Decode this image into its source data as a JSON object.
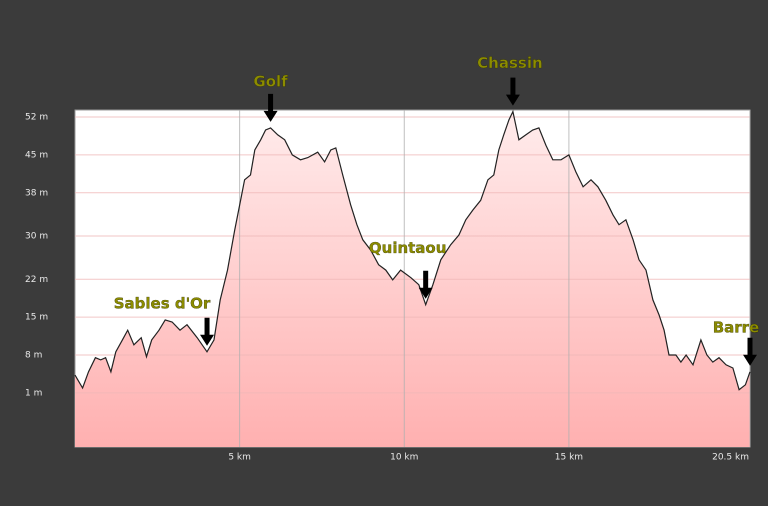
{
  "chart_data": {
    "type": "area",
    "x": [
      0,
      0.23,
      0.41,
      0.62,
      0.78,
      0.93,
      1.09,
      1.24,
      1.44,
      1.6,
      1.79,
      2.01,
      2.17,
      2.33,
      2.55,
      2.74,
      2.95,
      3.19,
      3.4,
      3.71,
      4.01,
      4.22,
      4.41,
      4.63,
      4.85,
      5.03,
      5.15,
      5.33,
      5.46,
      5.64,
      5.79,
      5.94,
      6.16,
      6.37,
      6.6,
      6.85,
      7.07,
      7.37,
      7.58,
      7.77,
      7.92,
      8.13,
      8.37,
      8.56,
      8.74,
      8.98,
      9.22,
      9.44,
      9.65,
      9.89,
      10.2,
      10.44,
      10.65,
      10.87,
      11.11,
      11.41,
      11.66,
      11.87,
      12.08,
      12.32,
      12.54,
      12.72,
      12.87,
      13.02,
      13.18,
      13.3,
      13.48,
      13.69,
      13.9,
      14.09,
      14.3,
      14.51,
      14.76,
      15.0,
      15.21,
      15.43,
      15.67,
      15.88,
      16.12,
      16.34,
      16.52,
      16.73,
      16.95,
      17.13,
      17.34,
      17.55,
      17.74,
      17.89,
      18.04,
      18.25,
      18.4,
      18.56,
      18.77,
      19.01,
      19.19,
      19.37,
      19.56,
      19.77,
      19.98,
      20.17,
      20.36,
      20.5
    ],
    "values": [
      4.3,
      1.9,
      4.9,
      7.5,
      7.1,
      7.5,
      4.9,
      8.6,
      10.8,
      12.6,
      9.9,
      11.2,
      7.7,
      10.8,
      12.6,
      14.5,
      14.1,
      12.6,
      13.6,
      11.2,
      8.6,
      10.8,
      18.2,
      23.7,
      31.1,
      36.6,
      40.4,
      41.3,
      45.9,
      47.8,
      49.6,
      50.0,
      48.7,
      47.8,
      45.0,
      44.1,
      44.5,
      45.5,
      43.7,
      45.9,
      46.3,
      41.3,
      35.8,
      32.1,
      29.3,
      27.4,
      24.7,
      23.7,
      21.9,
      23.7,
      22.3,
      21.0,
      17.3,
      21.0,
      25.6,
      28.4,
      30.2,
      33.0,
      34.8,
      36.6,
      40.4,
      41.3,
      45.9,
      48.7,
      51.5,
      53.0,
      47.8,
      48.7,
      49.6,
      50.0,
      46.8,
      44.1,
      44.1,
      45.0,
      41.9,
      39.1,
      40.4,
      39.1,
      36.6,
      33.9,
      32.1,
      33.0,
      29.3,
      25.6,
      23.7,
      18.2,
      15.4,
      12.6,
      8.0,
      8.0,
      6.7,
      8.0,
      6.2,
      10.8,
      8.0,
      6.7,
      7.5,
      6.2,
      5.6,
      1.6,
      2.5,
      4.9
    ],
    "xlim": [
      0,
      20.5
    ],
    "ylim": [
      -9,
      53.3
    ],
    "xticks": [
      {
        "value": 5,
        "label": "5 km"
      },
      {
        "value": 10,
        "label": "10 km"
      },
      {
        "value": 15,
        "label": "15 km"
      },
      {
        "value": 20.5,
        "label": "20.5 km"
      }
    ],
    "yticks": [
      {
        "value": 52,
        "label": "52 m"
      },
      {
        "value": 45,
        "label": "45 m"
      },
      {
        "value": 38,
        "label": "38 m"
      },
      {
        "value": 30,
        "label": "30 m"
      },
      {
        "value": 22,
        "label": "22 m"
      },
      {
        "value": 15,
        "label": "15 m"
      },
      {
        "value": 8,
        "label": "8 m"
      },
      {
        "value": 1,
        "label": "1 m"
      }
    ],
    "annotations": [
      {
        "text": "Sables d'Or",
        "x": 4.01
      },
      {
        "text": "Golf",
        "x": 5.94
      },
      {
        "text": "Quintaou",
        "x": 10.65
      },
      {
        "text": "Chassin",
        "x": 13.3
      },
      {
        "text": "Barre",
        "x": 20.5
      }
    ],
    "grid": true,
    "color": "#ffb8b8",
    "line_color": "#222222",
    "annotation_color": "#8c8c00"
  }
}
